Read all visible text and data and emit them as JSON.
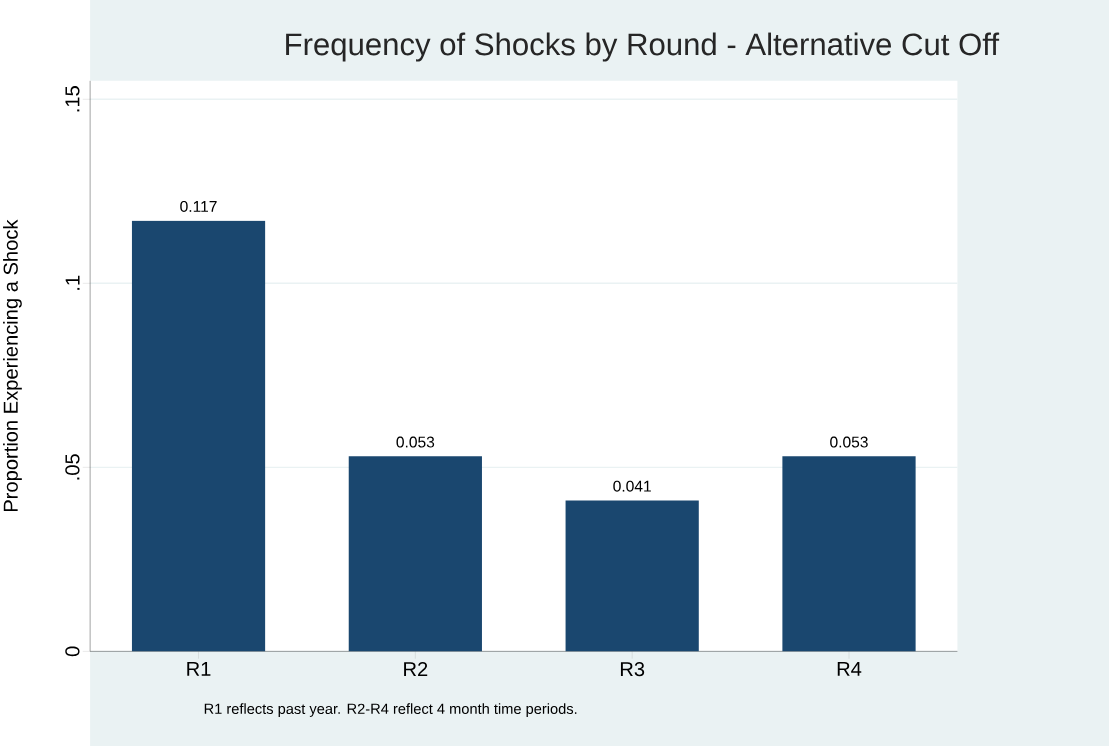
{
  "chart_data": {
    "type": "bar",
    "title": "Frequency of Shocks by Round - Alternative Cut Off",
    "ylabel": "Proportion Experiencing a Shock",
    "categories": [
      "R1",
      "R2",
      "R3",
      "R4"
    ],
    "values": [
      0.117,
      0.053,
      0.041,
      0.053
    ],
    "color": "#1a476f",
    "ylim": [
      0,
      0.155
    ],
    "yticks": [
      0,
      {
        "value": 0.05,
        "label": ".05"
      },
      {
        "value": 0.1,
        "label": ".1"
      },
      {
        "value": 0.15,
        "label": ".15"
      }
    ],
    "grid": "y",
    "data_labels": true,
    "annotations": [
      "R1 reflects past year. R2-R4 reflect 4 month time periods."
    ]
  }
}
